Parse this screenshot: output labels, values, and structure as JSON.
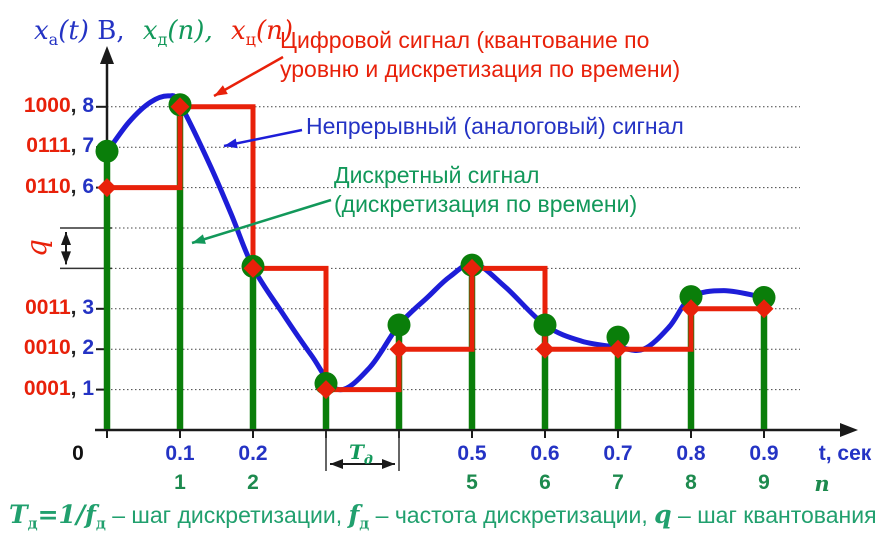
{
  "axis_title": {
    "analog": {
      "base": "x",
      "sub": "а",
      "args": "(t)",
      "unit": " В,"
    },
    "discrete": {
      "base": "x",
      "sub": "д",
      "args": "(n),"
    },
    "digital": {
      "base": "x",
      "sub": "ц",
      "args": "(n)"
    }
  },
  "annotations": {
    "digital_line1": "Цифровой сигнал (квантование по",
    "digital_line2": "уровню и дискретизация по времени)",
    "analog": "Непрерывный (аналоговый) сигнал",
    "discrete_line1": "Дискретный сигнал",
    "discrete_line2": "(дискретизация по времени)"
  },
  "q_label": "q",
  "t_step_label": {
    "base": "Т",
    "sub": "д"
  },
  "formula": {
    "T_base": "T",
    "T_sub": "д",
    "eq": "=1/",
    "f_base": "f",
    "f_sub": "д",
    "seg1": " – шаг дискретизации, ",
    "f2_base": "f",
    "f2_sub": "д",
    "seg2": " – частота дискретизации, ",
    "q": "q",
    "seg3": " – шаг квантования"
  },
  "colors": {
    "red": "#e8210a",
    "blue_curve": "#1d1dd8",
    "blue_text": "#2433c4",
    "green": "#0a7e0a",
    "green_text": "#12985a",
    "teal_text": "#21a06e",
    "black": "#1a1a1a",
    "grid": "#444444"
  },
  "chart_data": {
    "type": "line",
    "description": "Analog curve + discrete stem samples + quantized digital staircase",
    "x_axis": {
      "origin_label": "0",
      "unit_label": "t, сек",
      "index_label": "n",
      "tick_step_sec": 0.1,
      "range_sec": [
        0,
        0.9
      ],
      "labels": [
        {
          "t": "0.1",
          "n": "1"
        },
        {
          "t": "0.2",
          "n": "2"
        },
        {
          "t": "0.5",
          "n": "5"
        },
        {
          "t": "0.6",
          "n": "6"
        },
        {
          "t": "0.7",
          "n": "7"
        },
        {
          "t": "0.8",
          "n": "8"
        },
        {
          "t": "0.9",
          "n": "9"
        }
      ]
    },
    "y_axis": {
      "range": [
        0,
        8.6
      ],
      "levels": [
        {
          "code": "1000",
          "value": 8
        },
        {
          "code": "0111",
          "value": 7
        },
        {
          "code": "0110",
          "value": 6
        },
        {
          "code": "0011",
          "value": 3
        },
        {
          "code": "0010",
          "value": 2
        },
        {
          "code": "0001",
          "value": 1
        }
      ],
      "gridlines": [
        1,
        2,
        3,
        4,
        5,
        6,
        7,
        8
      ],
      "quant_step_between": [
        4,
        5
      ]
    },
    "samples": [
      {
        "n": 0,
        "t": 0.0,
        "analog": 6.9,
        "digital": 6
      },
      {
        "n": 1,
        "t": 0.1,
        "analog": 8.05,
        "digital": 8
      },
      {
        "n": 2,
        "t": 0.2,
        "analog": 4.05,
        "digital": 4
      },
      {
        "n": 3,
        "t": 0.3,
        "analog": 1.15,
        "digital": 1
      },
      {
        "n": 4,
        "t": 0.4,
        "analog": 2.6,
        "digital": 2
      },
      {
        "n": 5,
        "t": 0.5,
        "analog": 4.08,
        "digital": 4
      },
      {
        "n": 6,
        "t": 0.6,
        "analog": 2.6,
        "digital": 2
      },
      {
        "n": 7,
        "t": 0.7,
        "analog": 2.3,
        "digital": 2
      },
      {
        "n": 8,
        "t": 0.8,
        "analog": 3.3,
        "digital": 3
      },
      {
        "n": 9,
        "t": 0.9,
        "analog": 3.28,
        "digital": 3
      }
    ],
    "analog_curve": [
      [
        0.0,
        6.88
      ],
      [
        0.03,
        7.62
      ],
      [
        0.06,
        8.12
      ],
      [
        0.085,
        8.27
      ],
      [
        0.1,
        8.07
      ],
      [
        0.14,
        6.6
      ],
      [
        0.17,
        5.35
      ],
      [
        0.2,
        4.03
      ],
      [
        0.24,
        2.9
      ],
      [
        0.28,
        1.85
      ],
      [
        0.317,
        1.0
      ],
      [
        0.36,
        1.55
      ],
      [
        0.4,
        2.6
      ],
      [
        0.44,
        3.3
      ],
      [
        0.47,
        3.8
      ],
      [
        0.503,
        4.12
      ],
      [
        0.545,
        3.55
      ],
      [
        0.6,
        2.6
      ],
      [
        0.65,
        2.2
      ],
      [
        0.7,
        2.05
      ],
      [
        0.735,
        2.0
      ],
      [
        0.77,
        2.55
      ],
      [
        0.8,
        3.28
      ],
      [
        0.845,
        3.45
      ],
      [
        0.9,
        3.28
      ]
    ]
  }
}
